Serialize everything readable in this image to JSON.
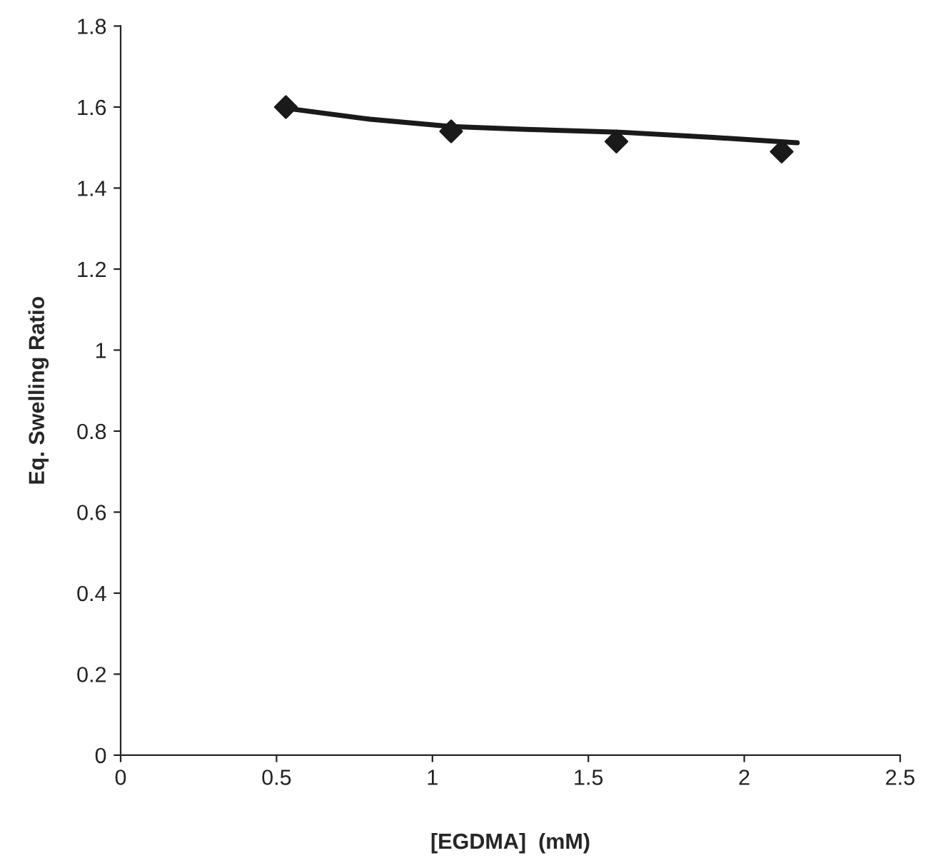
{
  "chart_data": {
    "type": "scatter",
    "xlabel": "[EGDMA]  (mM)",
    "ylabel": "Eq. Swelling Ratio",
    "series": [
      {
        "color": "#1a1a1a",
        "marker": "diamond",
        "x": [
          0.53,
          1.06,
          1.59,
          2.12
        ],
        "values": [
          1.6,
          1.54,
          1.515,
          1.49
        ]
      },
      {
        "type": "line",
        "color": "#1a1a1a",
        "marker": "none",
        "x": [
          0.53,
          0.8,
          1.06,
          1.3,
          1.6,
          1.9,
          2.17
        ],
        "values": [
          1.597,
          1.57,
          1.552,
          1.545,
          1.538,
          1.525,
          1.512
        ]
      }
    ],
    "xlim": [
      0,
      2.5
    ],
    "xticks": [
      0,
      0.5,
      1,
      1.5,
      2,
      2.5
    ],
    "ylim": [
      0,
      1.8
    ],
    "yticks": [
      0,
      0.2,
      0.4,
      0.6,
      0.8,
      1,
      1.2,
      1.4,
      1.6,
      1.8
    ],
    "grid": false,
    "legend": false
  }
}
